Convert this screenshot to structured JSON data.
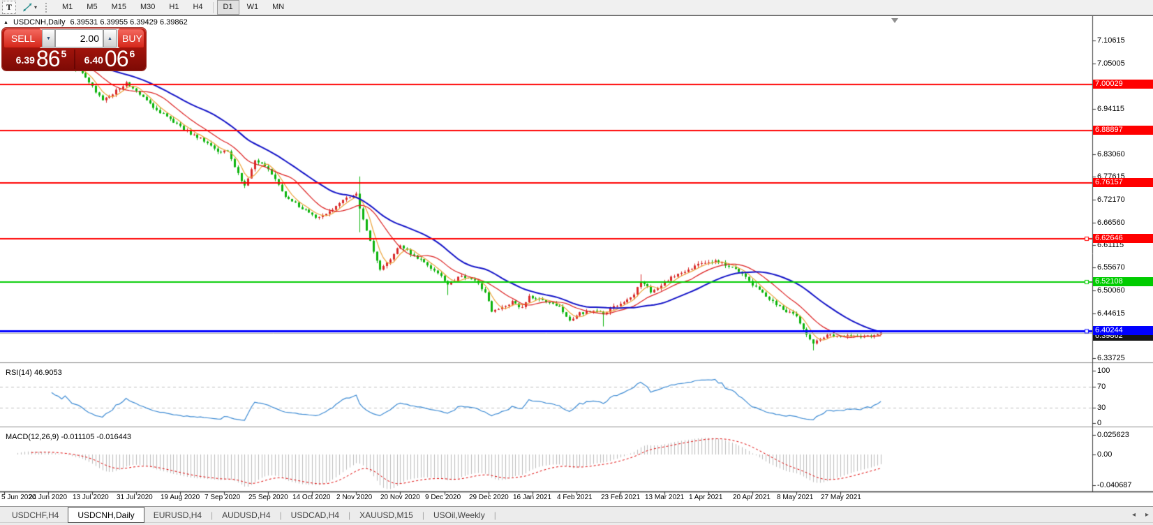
{
  "toolbar": {
    "text_tool_label": "T",
    "timeframes": [
      "M1",
      "M5",
      "M15",
      "M30",
      "H1",
      "H4",
      "D1",
      "W1",
      "MN"
    ],
    "active_timeframe": "D1"
  },
  "chart": {
    "title": "USDCNH,Daily",
    "quote": "6.39531 6.39955 6.39429 6.39862"
  },
  "trade_panel": {
    "sell_label": "SELL",
    "buy_label": "BUY",
    "volume": "2.00",
    "sell_price": {
      "small": "6.39",
      "big": "86",
      "sup": "5",
      "full": "6.39865"
    },
    "buy_price": {
      "small": "6.40",
      "big": "06",
      "sup": "6",
      "full": "6.40066"
    }
  },
  "indicators": {
    "rsi_label": "RSI(14) 46.9053",
    "macd_label": "MACD(12,26,9) -0.011105 -0.016443"
  },
  "price_axis": {
    "ticks": [
      7.10615,
      7.05005,
      6.94115,
      6.8306,
      6.77615,
      6.7217,
      6.6656,
      6.61115,
      6.5567,
      6.5006,
      6.44615,
      6.33725
    ],
    "bid_tag": {
      "price": 6.39862,
      "label": "6.39862",
      "color": "#151515"
    }
  },
  "rsi_axis": {
    "ticks": [
      100,
      70,
      30,
      0
    ]
  },
  "macd_axis": {
    "ticks": [
      {
        "value": 0.025623,
        "label": "0.025623"
      },
      {
        "value": 0.0,
        "label": "0.00"
      },
      {
        "value": -0.040687,
        "label": "-0.040687"
      }
    ]
  },
  "time_axis": {
    "dates": [
      "5 Jun 2020",
      "24 Jun 2020",
      "13 Jul 2020",
      "31 Jul 2020",
      "19 Aug 2020",
      "7 Sep 2020",
      "25 Sep 2020",
      "14 Oct 2020",
      "2 Nov 2020",
      "20 Nov 2020",
      "9 Dec 2020",
      "29 Dec 2020",
      "16 Jan 2021",
      "4 Feb 2021",
      "23 Feb 2021",
      "13 Mar 2021",
      "1 Apr 2021",
      "20 Apr 2021",
      "8 May 2021",
      "27 May 2021"
    ]
  },
  "tabs": {
    "items": [
      "USDCHF,H4",
      "USDCNH,Daily",
      "EURUSD,H4",
      "AUDUSD,H4",
      "USDCAD,H4",
      "XAUUSD,M15",
      "USOil,Weekly"
    ],
    "active": "USDCNH,Daily"
  },
  "chart_data": {
    "type": "candlestick",
    "symbol": "USDCNH",
    "timeframe": "Daily",
    "current_bar": {
      "open": 6.39531,
      "high": 6.39955,
      "low": 6.39429,
      "close": 6.39862
    },
    "y_range": [
      6.33725,
      7.10615
    ],
    "grid": false,
    "candles": {
      "count": 260,
      "spacing": 4.85,
      "x0": 6,
      "seed": 20210611,
      "last_close": 6.39862
    },
    "price_path_anchors": {
      "indices": [
        0,
        6,
        12,
        19,
        24,
        29,
        33,
        36,
        40,
        46,
        50,
        54,
        58,
        62,
        66,
        71,
        74,
        78,
        83,
        88,
        92,
        97,
        102,
        104,
        105,
        108,
        111,
        114,
        117,
        120,
        124,
        128,
        131,
        135,
        139,
        142,
        144,
        147,
        150,
        153,
        155,
        158,
        162,
        165,
        167,
        170,
        174,
        177,
        180,
        184,
        186,
        188,
        191,
        194,
        197,
        200,
        203,
        206,
        209,
        212,
        215,
        217,
        220,
        222,
        225,
        227,
        230,
        232,
        234,
        236,
        238,
        239,
        241,
        244,
        247,
        250,
        253,
        256,
        259
      ],
      "closes": [
        7.05,
        7.068,
        7.062,
        7.048,
        7.02,
        6.958,
        6.985,
        7.002,
        6.975,
        6.932,
        6.91,
        6.885,
        6.868,
        6.842,
        6.835,
        6.752,
        6.815,
        6.795,
        6.73,
        6.7,
        6.675,
        6.7,
        6.728,
        6.735,
        6.7,
        6.62,
        6.552,
        6.578,
        6.612,
        6.59,
        6.568,
        6.545,
        6.518,
        6.535,
        6.523,
        6.5,
        6.448,
        6.462,
        6.472,
        6.458,
        6.488,
        6.478,
        6.472,
        6.452,
        6.428,
        6.445,
        6.455,
        6.442,
        6.462,
        6.478,
        6.49,
        6.525,
        6.5,
        6.512,
        6.532,
        6.545,
        6.556,
        6.565,
        6.572,
        6.567,
        6.556,
        6.545,
        6.525,
        6.508,
        6.488,
        6.475,
        6.455,
        6.448,
        6.438,
        6.408,
        6.385,
        6.372,
        6.385,
        6.393,
        6.388,
        6.394,
        6.39,
        6.392,
        6.3986
      ]
    },
    "special_candles": [
      {
        "index": 105,
        "high": 6.777,
        "low": 6.642
      },
      {
        "index": 131,
        "low": 6.49
      },
      {
        "index": 177,
        "low": 6.414
      },
      {
        "index": 188,
        "high": 6.54
      },
      {
        "index": 239,
        "low": 6.356
      }
    ],
    "moving_averages": [
      {
        "period": 5,
        "color": "#eda338",
        "width": 1.2
      },
      {
        "period": 13,
        "color": "#dd2020",
        "width": 1.2
      },
      {
        "period": 30,
        "color": "#1414c8",
        "width": 2
      }
    ],
    "horizontal_levels": [
      {
        "price": 7.00029,
        "label": "7.00029",
        "color": "#ff0000",
        "width": 2,
        "square": false
      },
      {
        "price": 6.88897,
        "label": "6.88897",
        "color": "#ff0000",
        "width": 2,
        "square": false
      },
      {
        "price": 6.76157,
        "label": "6.76157",
        "color": "#ff0000",
        "width": 2,
        "square": false
      },
      {
        "price": 6.62646,
        "label": "6.62646",
        "color": "#ff0000",
        "width": 2,
        "square": true
      },
      {
        "price": 6.52108,
        "label": "6.52108",
        "color": "#00cc00",
        "width": 2,
        "square": true
      },
      {
        "price": 6.40244,
        "label": "6.40244",
        "color": "#0000ff",
        "width": 3,
        "square": true
      }
    ],
    "bid_line": {
      "price": 6.39862,
      "color": "#a8a8a8"
    },
    "rsi": {
      "period": 14,
      "current": 46.9053,
      "color": "#3d8bd4",
      "levels": [
        70,
        30
      ]
    },
    "macd": {
      "fast": 12,
      "slow": 26,
      "signal": 9,
      "current_main": -0.011105,
      "current_signal": -0.016443,
      "histogram_color": "#bdbdbd",
      "signal_color": "#e00000"
    },
    "colors": {
      "up_candle": "#d92b2b",
      "down_candle": "#0cb40c",
      "background": "#ffffff",
      "axis_text": "#000000"
    }
  }
}
